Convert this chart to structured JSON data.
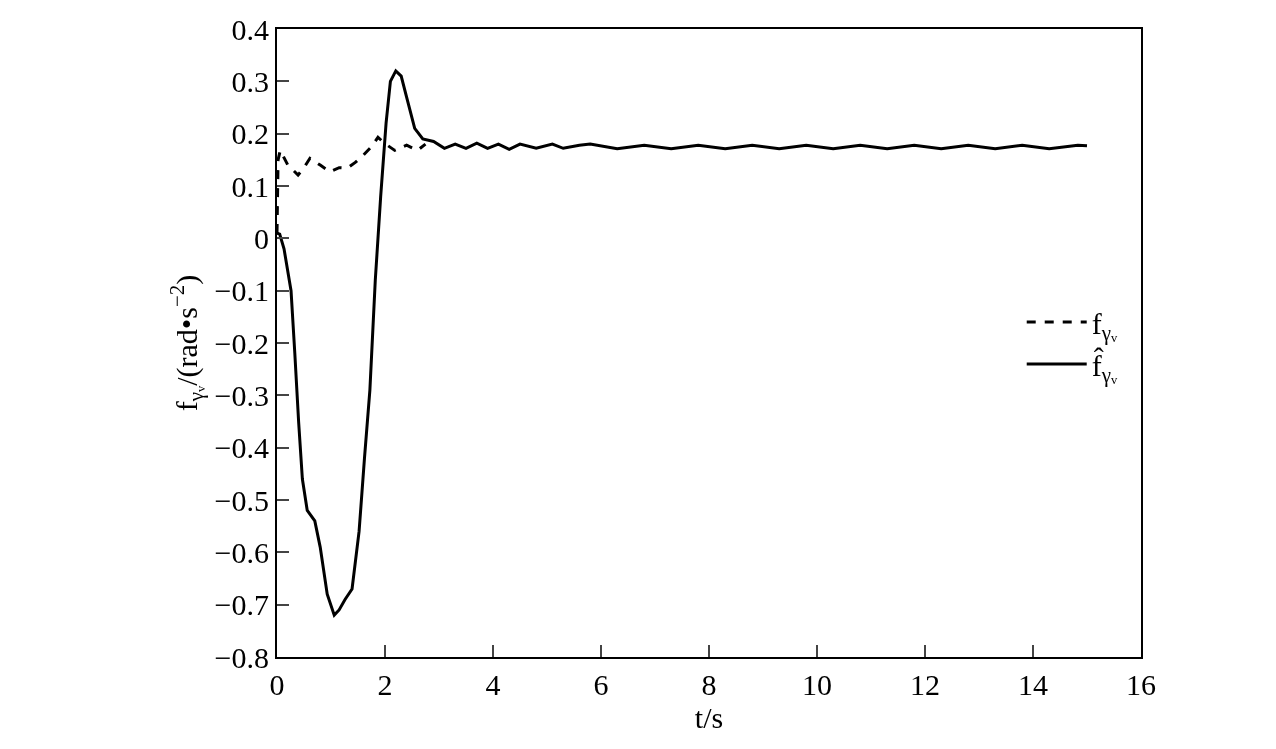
{
  "chart_data": {
    "type": "line",
    "xlabel": "t/s",
    "ylabel": "f$_{γᵥ}$/(rad•s$^{−2}$)",
    "xlim": [
      0,
      16
    ],
    "xticks": [
      0,
      2,
      4,
      6,
      8,
      10,
      12,
      14,
      16
    ],
    "ylim": [
      -0.8,
      0.4
    ],
    "yticks": [
      -0.8,
      -0.7,
      -0.6,
      -0.5,
      -0.4,
      -0.3,
      -0.2,
      -0.1,
      0,
      0.1,
      0.2,
      0.3,
      0.4
    ],
    "legend": "right",
    "marker": "none",
    "series": [
      {
        "name": "f$_{γᵥ}$",
        "color": "#000000",
        "line_style": "dashed",
        "x": [
          0,
          0.02,
          0.06,
          0.2,
          0.39,
          0.5,
          0.61,
          0.8,
          0.98,
          1.15,
          1.3,
          1.45,
          1.6,
          1.75,
          1.87,
          2.0,
          2.18,
          2.4,
          2.6,
          2.75
        ],
        "values": [
          0.01,
          0.15,
          0.168,
          0.14,
          0.121,
          0.135,
          0.153,
          0.14,
          0.127,
          0.135,
          0.134,
          0.145,
          0.159,
          0.175,
          0.193,
          0.181,
          0.168,
          0.178,
          0.168,
          0.18
        ]
      },
      {
        "name": "f̂$_{γᵥ}$",
        "color": "#000000",
        "line_style": "solid",
        "x": [
          0,
          0.05,
          0.13,
          0.26,
          0.33,
          0.4,
          0.47,
          0.56,
          0.7,
          0.8,
          0.93,
          1.06,
          1.15,
          1.26,
          1.39,
          1.52,
          1.62,
          1.72,
          1.82,
          1.92,
          2.02,
          2.1,
          2.2,
          2.3,
          2.4,
          2.55,
          2.7,
          2.9,
          3.1,
          3.3,
          3.5,
          3.7,
          3.9,
          4.1,
          4.3,
          4.5,
          4.8,
          5.1,
          5.3,
          5.6,
          5.8,
          6.3,
          6.8,
          7.3,
          7.8,
          8.3,
          8.8,
          9.3,
          9.8,
          10.3,
          10.8,
          11.3,
          11.8,
          12.3,
          12.8,
          13.3,
          13.8,
          14.3,
          14.83,
          15.0
        ],
        "values": [
          0.01,
          0.008,
          -0.02,
          -0.1,
          -0.22,
          -0.35,
          -0.46,
          -0.52,
          -0.54,
          -0.59,
          -0.68,
          -0.72,
          -0.71,
          -0.69,
          -0.67,
          -0.56,
          -0.42,
          -0.29,
          -0.08,
          0.08,
          0.22,
          0.3,
          0.32,
          0.31,
          0.27,
          0.21,
          0.19,
          0.185,
          0.172,
          0.18,
          0.172,
          0.182,
          0.172,
          0.18,
          0.17,
          0.18,
          0.172,
          0.18,
          0.172,
          0.178,
          0.18,
          0.171,
          0.178,
          0.171,
          0.178,
          0.171,
          0.178,
          0.171,
          0.178,
          0.171,
          0.178,
          0.171,
          0.178,
          0.171,
          0.178,
          0.171,
          0.178,
          0.171,
          0.178,
          0.177
        ]
      }
    ]
  }
}
